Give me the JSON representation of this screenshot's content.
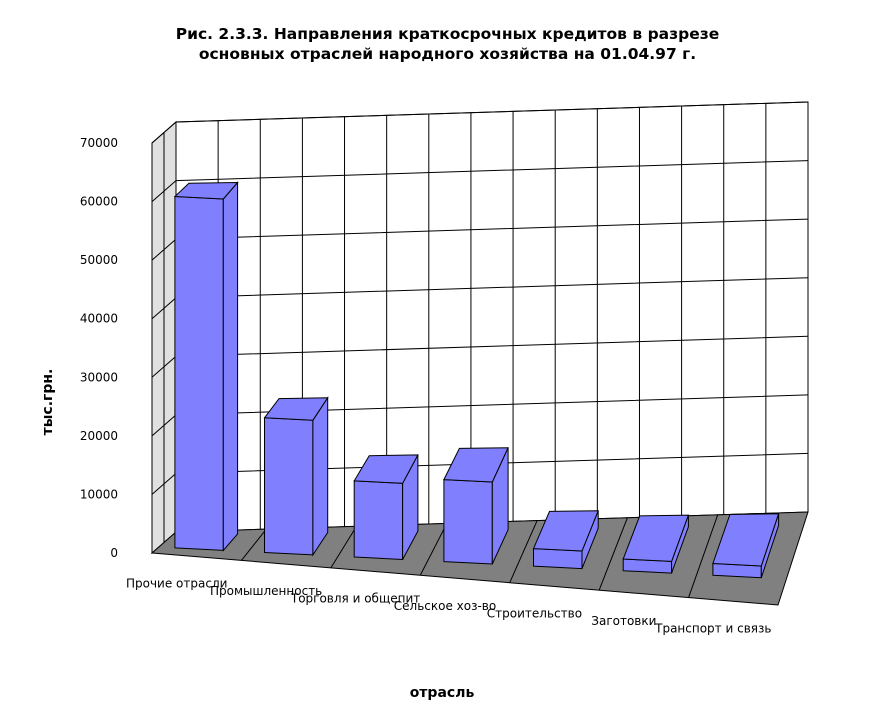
{
  "chart_data": {
    "type": "bar",
    "title_line1": "Рис. 2.3.3. Направления краткосрочных кредитов в разрезе",
    "title_line2": "основных отраслей народного хозяйства на 01.04.97 г.",
    "xlabel": "отрасль",
    "ylabel": "тыс.грн.",
    "ylim": [
      0,
      70000
    ],
    "y_ticks": [
      "0",
      "10000",
      "20000",
      "30000",
      "40000",
      "50000",
      "60000",
      "70000"
    ],
    "categories": [
      "Прочие отрасли",
      "Промышленность",
      "Торговля и общепит",
      "Сельское хоз-во",
      "Строительство",
      "Заготовки",
      "Транспорт и связь"
    ],
    "values": [
      60000,
      23000,
      13000,
      14000,
      3000,
      2000,
      2000
    ],
    "grid": true,
    "bar_color": "#8080ff",
    "floor_color": "#808080",
    "wall_color": "#e0e0e0"
  }
}
